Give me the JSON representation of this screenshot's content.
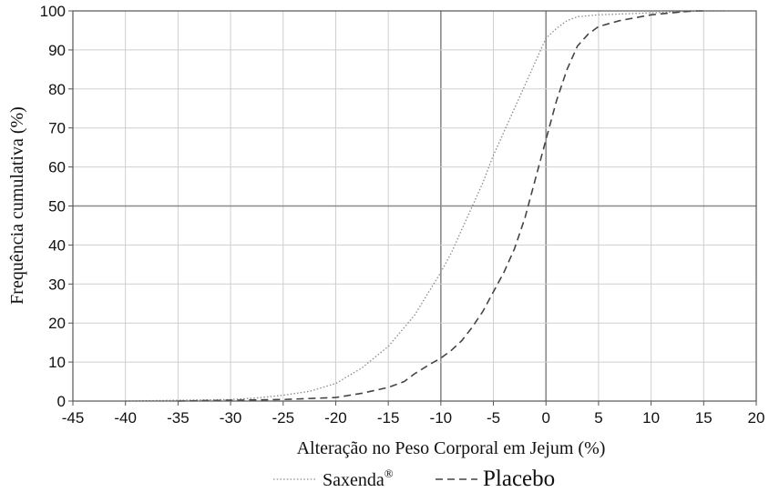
{
  "chart_data": {
    "type": "line",
    "title": "",
    "xlabel": "Alteração no Peso Corporal em Jejum (%)",
    "ylabel": "Frequência cumulativa (%)",
    "xlim": [
      -45,
      20
    ],
    "ylim": [
      0,
      100
    ],
    "x_ticks": [
      "-45",
      "-40",
      "-35",
      "-30",
      "-25",
      "-20",
      "-15",
      "-10",
      "-5",
      "0",
      "5",
      "10",
      "15",
      "20"
    ],
    "y_ticks": [
      "0",
      "10",
      "20",
      "30",
      "40",
      "50",
      "60",
      "70",
      "80",
      "90",
      "100"
    ],
    "grid": true,
    "legend_position": "bottom",
    "legend": [
      {
        "label": "Saxenda",
        "superscript": "®",
        "style": "dotted"
      },
      {
        "label": "Placebo",
        "style": "dashed"
      }
    ],
    "series": [
      {
        "name": "Saxenda®",
        "color": "#8a8a8a",
        "style": "dotted",
        "points": [
          [
            -40,
            0
          ],
          [
            -35,
            0.2
          ],
          [
            -30,
            0.4
          ],
          [
            -27.5,
            0.8
          ],
          [
            -25,
            1.5
          ],
          [
            -22.5,
            2.5
          ],
          [
            -20,
            4.5
          ],
          [
            -17.5,
            8.5
          ],
          [
            -15,
            14
          ],
          [
            -12.5,
            22
          ],
          [
            -10,
            33
          ],
          [
            -9,
            38
          ],
          [
            -8,
            44
          ],
          [
            -7,
            50
          ],
          [
            -6,
            56
          ],
          [
            -5,
            63
          ],
          [
            -4,
            69
          ],
          [
            -3,
            75
          ],
          [
            -2,
            81
          ],
          [
            -1,
            87
          ],
          [
            0,
            93
          ],
          [
            1,
            95.5
          ],
          [
            2,
            97.5
          ],
          [
            3,
            98.5
          ],
          [
            5,
            99
          ],
          [
            10,
            99.5
          ],
          [
            15,
            100
          ],
          [
            17,
            100
          ]
        ]
      },
      {
        "name": "Placebo",
        "color": "#444444",
        "style": "dashed",
        "points": [
          [
            -35,
            0
          ],
          [
            -30,
            0.2
          ],
          [
            -25,
            0.4
          ],
          [
            -20,
            0.9
          ],
          [
            -17.5,
            2
          ],
          [
            -15,
            3.5
          ],
          [
            -13.5,
            5
          ],
          [
            -12.5,
            7
          ],
          [
            -11,
            9.5
          ],
          [
            -10,
            11
          ],
          [
            -9,
            13
          ],
          [
            -8,
            15.5
          ],
          [
            -7,
            19
          ],
          [
            -6,
            23
          ],
          [
            -5,
            28
          ],
          [
            -4,
            33
          ],
          [
            -3,
            39
          ],
          [
            -2,
            47
          ],
          [
            -1,
            57
          ],
          [
            0,
            67
          ],
          [
            1,
            77
          ],
          [
            2,
            85
          ],
          [
            3,
            91
          ],
          [
            4,
            94
          ],
          [
            5,
            96
          ],
          [
            7,
            97.5
          ],
          [
            10,
            99
          ],
          [
            12,
            99.5
          ],
          [
            14,
            100
          ],
          [
            15,
            100
          ]
        ]
      }
    ]
  }
}
